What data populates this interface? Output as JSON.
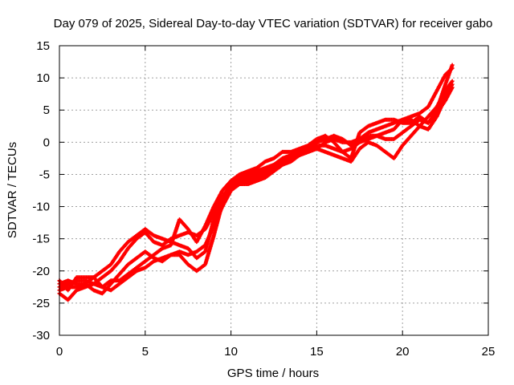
{
  "chart_data": {
    "type": "scatter",
    "title": "Day 079 of 2025, Sidereal Day-to-day VTEC variation (SDTVAR) for receiver gabo",
    "xlabel": "GPS time / hours",
    "ylabel": "SDTVAR / TECUs",
    "xlim": [
      0,
      25
    ],
    "ylim": [
      -30,
      15
    ],
    "xticks": [
      0,
      5,
      10,
      15,
      20,
      25
    ],
    "yticks": [
      -30,
      -25,
      -20,
      -15,
      -10,
      -5,
      0,
      5,
      10,
      15
    ],
    "grid": true,
    "legend": "none",
    "marker": "plus",
    "color": "#ff0000",
    "series": [
      {
        "x": [
          0.0,
          0.5,
          1.0,
          1.5,
          2.0,
          2.5,
          3.0,
          3.5,
          4.0,
          4.5,
          5.0,
          5.5,
          6.0,
          6.5,
          7.0,
          7.5,
          8.0,
          8.5,
          9.0,
          9.5,
          10.0,
          10.5,
          11.0,
          11.5,
          12.0,
          12.5,
          13.0,
          13.5,
          14.0,
          14.5,
          15.0,
          15.5,
          16.0,
          16.5,
          17.0,
          17.5,
          18.0,
          18.5,
          19.0,
          19.5,
          20.0,
          20.5,
          21.0,
          21.5,
          22.0,
          22.5,
          22.9
        ],
        "y": [
          -22.5,
          -22.0,
          -21.5,
          -21.5,
          -22.0,
          -21.0,
          -20.0,
          -18.5,
          -16.5,
          -15.0,
          -14.0,
          -15.5,
          -16.0,
          -15.0,
          -14.5,
          -14.0,
          -14.5,
          -13.5,
          -11.0,
          -8.5,
          -6.5,
          -5.5,
          -5.0,
          -4.5,
          -4.0,
          -3.5,
          -2.5,
          -2.0,
          -1.5,
          -1.0,
          -0.5,
          -0.5,
          -1.0,
          -1.5,
          -1.0,
          0.0,
          0.5,
          1.0,
          1.5,
          2.0,
          3.5,
          4.0,
          4.5,
          5.5,
          8.0,
          10.5,
          11.5
        ]
      },
      {
        "x": [
          0.0,
          0.5,
          1.0,
          1.5,
          2.0,
          2.5,
          3.0,
          3.5,
          4.0,
          4.5,
          5.0,
          5.5,
          6.0,
          6.5,
          7.0,
          7.5,
          8.0,
          8.5,
          9.0,
          9.5,
          10.0,
          10.5,
          11.0,
          11.5,
          12.0,
          12.5,
          13.0,
          13.5,
          14.0,
          14.5,
          15.0,
          15.5,
          16.0,
          16.5,
          17.0,
          17.5,
          18.0,
          18.5,
          19.0,
          19.5,
          20.0,
          20.5,
          21.0,
          21.5,
          22.0,
          22.5,
          22.9
        ],
        "y": [
          -23.0,
          -22.5,
          -22.5,
          -22.0,
          -23.0,
          -23.5,
          -22.0,
          -20.5,
          -19.0,
          -18.0,
          -17.0,
          -18.0,
          -18.5,
          -17.5,
          -17.0,
          -17.5,
          -17.0,
          -16.0,
          -13.0,
          -10.0,
          -7.5,
          -6.5,
          -6.0,
          -5.5,
          -5.0,
          -4.5,
          -3.5,
          -3.0,
          -2.0,
          -1.5,
          -1.0,
          -1.5,
          -2.0,
          -2.5,
          -3.0,
          -1.0,
          0.0,
          -0.5,
          -1.5,
          -2.5,
          -0.5,
          1.0,
          2.5,
          4.0,
          5.5,
          8.0,
          9.5
        ]
      },
      {
        "x": [
          0.0,
          0.5,
          1.0,
          1.5,
          2.0,
          2.5,
          3.0,
          3.5,
          4.0,
          4.5,
          5.0,
          5.5,
          6.0,
          6.5,
          7.0,
          7.5,
          8.0,
          8.5,
          9.0,
          9.5,
          10.0,
          10.5,
          11.0,
          11.5,
          12.0,
          12.5,
          13.0,
          13.5,
          14.0,
          14.5,
          15.0,
          15.5,
          16.0,
          16.5,
          17.0,
          17.5,
          18.0,
          18.5,
          19.0,
          19.5,
          20.0,
          20.5,
          21.0,
          21.5,
          22.0,
          22.5,
          22.9
        ],
        "y": [
          -23.5,
          -24.5,
          -23.0,
          -22.5,
          -22.0,
          -22.5,
          -23.0,
          -22.0,
          -21.0,
          -20.0,
          -19.5,
          -18.5,
          -18.0,
          -17.5,
          -17.5,
          -19.0,
          -20.0,
          -19.0,
          -14.5,
          -9.5,
          -7.0,
          -6.5,
          -6.5,
          -6.0,
          -5.5,
          -4.5,
          -3.5,
          -2.5,
          -2.0,
          -1.0,
          0.0,
          0.5,
          1.0,
          0.5,
          -0.5,
          0.5,
          1.5,
          2.0,
          2.5,
          3.0,
          3.5,
          3.5,
          2.5,
          2.0,
          4.0,
          7.0,
          9.0
        ]
      },
      {
        "x": [
          0.0,
          0.5,
          1.0,
          1.5,
          2.0,
          2.5,
          3.0,
          3.5,
          4.0,
          4.5,
          5.0,
          5.5,
          6.0,
          6.5,
          7.0,
          7.5,
          8.0,
          8.5,
          9.0,
          9.5,
          10.0,
          10.5,
          11.0,
          11.5,
          12.0,
          12.5,
          13.0,
          13.5,
          14.0,
          14.5,
          15.0,
          15.5,
          16.0,
          16.5,
          17.0,
          17.5,
          18.0,
          18.5,
          19.0,
          19.5,
          20.0,
          20.5,
          21.0,
          21.5,
          22.0,
          22.5,
          22.9
        ],
        "y": [
          -21.5,
          -23.0,
          -21.0,
          -21.0,
          -21.0,
          -22.5,
          -21.5,
          -21.5,
          -20.5,
          -19.5,
          -18.5,
          -17.5,
          -16.5,
          -16.0,
          -12.0,
          -13.5,
          -15.5,
          -13.0,
          -10.0,
          -7.5,
          -6.0,
          -5.0,
          -4.5,
          -4.0,
          -3.0,
          -2.5,
          -1.5,
          -1.5,
          -1.0,
          -0.5,
          0.5,
          1.0,
          0.0,
          -1.5,
          -2.5,
          1.5,
          2.5,
          3.0,
          3.5,
          3.5,
          3.0,
          3.0,
          4.0,
          3.0,
          4.5,
          6.5,
          8.5
        ]
      },
      {
        "x": [
          0.0,
          0.5,
          1.0,
          1.5,
          2.0,
          2.5,
          3.0,
          3.5,
          4.0,
          4.5,
          5.0,
          5.5,
          6.0,
          6.5,
          7.0,
          7.5,
          8.0,
          8.5,
          9.0,
          9.5,
          10.0,
          10.5,
          11.0,
          11.5,
          12.0,
          12.5,
          13.0,
          13.5,
          14.0,
          14.5,
          15.0,
          15.5,
          16.0,
          16.5,
          17.0,
          17.5,
          18.0,
          18.5,
          19.0,
          19.5,
          20.0,
          20.5,
          21.0,
          21.5,
          22.0,
          22.5,
          22.9
        ],
        "y": [
          -22.0,
          -21.5,
          -22.0,
          -22.0,
          -21.0,
          -20.0,
          -19.0,
          -17.0,
          -15.5,
          -14.5,
          -13.5,
          -14.5,
          -15.0,
          -15.5,
          -16.0,
          -16.5,
          -18.0,
          -17.0,
          -12.0,
          -9.0,
          -7.0,
          -6.0,
          -5.5,
          -5.0,
          -4.5,
          -4.0,
          -3.0,
          -2.5,
          -2.0,
          -1.5,
          -1.0,
          0.0,
          0.5,
          0.0,
          0.0,
          0.5,
          1.0,
          1.0,
          0.5,
          0.5,
          1.5,
          2.5,
          3.5,
          3.0,
          5.0,
          9.0,
          12.0
        ]
      }
    ]
  }
}
